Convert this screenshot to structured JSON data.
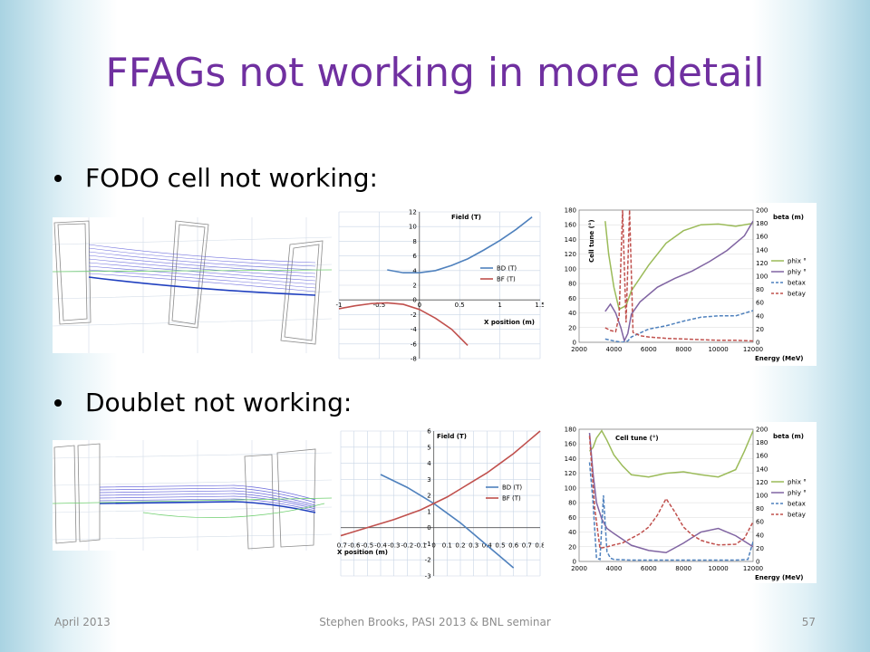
{
  "slide": {
    "title": "FFAGs not working in more detail",
    "bullets": [
      "FODO cell not working:",
      "Doublet not working:"
    ],
    "footer_left": "April 2013",
    "footer_center": "Stephen Brooks, PASI 2013 & BNL seminar",
    "page_number": "57"
  },
  "chart_data": [
    {
      "type": "line",
      "title": "Field (T)",
      "xlabel": "X position (m)",
      "xlim": [
        -1,
        1.5
      ],
      "ylim": [
        -8,
        12
      ],
      "xticks": [
        "-1",
        "-0.5",
        "0",
        "0.5",
        "1",
        "1.5"
      ],
      "yticks": [
        "-8",
        "-6",
        "-4",
        "-2",
        "0",
        "2",
        "4",
        "6",
        "8",
        "10",
        "12"
      ],
      "series": [
        {
          "name": "BD (T)",
          "color": "#4f81bd",
          "x": [
            -0.4,
            -0.2,
            0,
            0.2,
            0.4,
            0.6,
            0.8,
            1.0,
            1.2,
            1.4
          ],
          "y": [
            4.1,
            3.7,
            3.7,
            4.0,
            4.7,
            5.6,
            6.8,
            8.1,
            9.6,
            11.3
          ]
        },
        {
          "name": "BF (T)",
          "color": "#c0504d",
          "x": [
            -1.0,
            -0.8,
            -0.6,
            -0.4,
            -0.2,
            0,
            0.2,
            0.4,
            0.6
          ],
          "y": [
            -1.2,
            -0.8,
            -0.5,
            -0.4,
            -0.6,
            -1.3,
            -2.5,
            -4.0,
            -6.2
          ]
        }
      ]
    },
    {
      "type": "line",
      "title": "Cell tune (°)",
      "xlabel": "Energy (MeV)",
      "ylabel_right": "beta (m)",
      "xlim": [
        2000,
        12000
      ],
      "ylim": [
        0,
        180
      ],
      "ylim_right": [
        0,
        200
      ],
      "xticks": [
        "2000",
        "4000",
        "6000",
        "8000",
        "10000",
        "12000"
      ],
      "yticks": [
        "0",
        "20",
        "40",
        "60",
        "80",
        "100",
        "120",
        "140",
        "160",
        "180"
      ],
      "yticks_right": [
        "0",
        "20",
        "40",
        "60",
        "80",
        "100",
        "120",
        "140",
        "160",
        "180",
        "200"
      ],
      "series": [
        {
          "name": "phix °",
          "color": "#9bbb59",
          "dash": false,
          "axis": "left",
          "x": [
            3500,
            3700,
            4000,
            4300,
            4700,
            5000,
            6000,
            7000,
            8000,
            9000,
            10000,
            11000,
            12000
          ],
          "y": [
            165,
            120,
            75,
            45,
            50,
            70,
            105,
            135,
            152,
            160,
            161,
            158,
            162
          ]
        },
        {
          "name": "phiy °",
          "color": "#8064a2",
          "dash": false,
          "axis": "left",
          "x": [
            3500,
            3800,
            4100,
            4400,
            4600,
            4800,
            5000,
            5500,
            6500,
            7500,
            8500,
            9500,
            10500,
            11500,
            12000
          ],
          "y": [
            42,
            52,
            40,
            20,
            2,
            12,
            38,
            55,
            75,
            87,
            97,
            110,
            125,
            145,
            165
          ]
        },
        {
          "name": "betax",
          "color": "#4f81bd",
          "dash": true,
          "axis": "right",
          "x": [
            3500,
            4000,
            4500,
            4800,
            5000,
            5500,
            6000,
            7000,
            8000,
            9000,
            10000,
            11000,
            12000
          ],
          "y": [
            5,
            2,
            0,
            2,
            8,
            14,
            20,
            25,
            32,
            38,
            40,
            40,
            48
          ]
        },
        {
          "name": "betay",
          "color": "#c0504d",
          "dash": true,
          "axis": "right",
          "x": [
            3500,
            3800,
            4100,
            4300,
            4500,
            4700,
            4900,
            5100,
            5500,
            6000,
            7000,
            8000,
            9000,
            10000,
            11000,
            12000
          ],
          "y": [
            22,
            18,
            16,
            40,
            200,
            30,
            200,
            15,
            10,
            8,
            6,
            5,
            4,
            3,
            3,
            2
          ]
        }
      ]
    },
    {
      "type": "line",
      "title": "Field (T)",
      "xlabel": "X position (m)",
      "xlim": [
        -0.7,
        0.8
      ],
      "ylim": [
        -3,
        6
      ],
      "xticks": [
        "-0.7",
        "-0.6",
        "-0.5",
        "-0.4",
        "-0.3",
        "-0.2",
        "-0.1",
        "0",
        "0.1",
        "0.2",
        "0.3",
        "0.4",
        "0.5",
        "0.6",
        "0.7",
        "0.8"
      ],
      "yticks": [
        "-3",
        "-2",
        "-1",
        "0",
        "1",
        "2",
        "3",
        "4",
        "5",
        "6"
      ],
      "series": [
        {
          "name": "BD (T)",
          "color": "#4f81bd",
          "x": [
            -0.4,
            -0.2,
            -0.1,
            0,
            0.1,
            0.2,
            0.3,
            0.4,
            0.5,
            0.6
          ],
          "y": [
            3.3,
            2.5,
            2.0,
            1.5,
            0.9,
            0.3,
            -0.4,
            -1.1,
            -1.8,
            -2.5
          ]
        },
        {
          "name": "BF (T)",
          "color": "#c0504d",
          "x": [
            -0.7,
            -0.5,
            -0.3,
            -0.1,
            0,
            0.1,
            0.2,
            0.3,
            0.4,
            0.5,
            0.6,
            0.7,
            0.8
          ],
          "y": [
            -0.5,
            0.0,
            0.5,
            1.1,
            1.5,
            1.9,
            2.4,
            2.9,
            3.4,
            4.0,
            4.6,
            5.3,
            6.0
          ]
        }
      ]
    },
    {
      "type": "line",
      "title": "Cell tune (°)",
      "xlabel": "Energy (MeV)",
      "ylabel_right": "beta (m)",
      "xlim": [
        2000,
        12000
      ],
      "ylim": [
        0,
        180
      ],
      "ylim_right": [
        0,
        200
      ],
      "xticks": [
        "2000",
        "4000",
        "6000",
        "8000",
        "10000",
        "12000"
      ],
      "yticks": [
        "0",
        "20",
        "40",
        "60",
        "80",
        "100",
        "120",
        "140",
        "160",
        "180"
      ],
      "yticks_right": [
        "0",
        "20",
        "40",
        "60",
        "80",
        "100",
        "120",
        "140",
        "160",
        "180",
        "200"
      ],
      "series": [
        {
          "name": "phix °",
          "color": "#9bbb59",
          "dash": false,
          "axis": "left",
          "x": [
            2600,
            2800,
            3000,
            3300,
            3600,
            4000,
            4500,
            5000,
            6000,
            7000,
            8000,
            9000,
            10000,
            11000,
            11500,
            12000
          ],
          "y": [
            150,
            155,
            168,
            178,
            165,
            145,
            130,
            118,
            115,
            120,
            122,
            118,
            115,
            125,
            150,
            178
          ]
        },
        {
          "name": "phiy °",
          "color": "#8064a2",
          "dash": false,
          "axis": "left",
          "x": [
            2600,
            2800,
            3000,
            3300,
            3600,
            4000,
            4500,
            5000,
            6000,
            7000,
            8000,
            9000,
            10000,
            11000,
            12000
          ],
          "y": [
            175,
            120,
            80,
            58,
            45,
            38,
            30,
            22,
            15,
            12,
            25,
            40,
            45,
            35,
            20
          ]
        },
        {
          "name": "betax",
          "color": "#4f81bd",
          "dash": true,
          "axis": "right",
          "x": [
            2600,
            2800,
            3000,
            3200,
            3400,
            3600,
            3800,
            4000,
            5000,
            6000,
            8000,
            10000,
            11000,
            11700,
            12000
          ],
          "y": [
            150,
            90,
            5,
            3,
            100,
            15,
            5,
            3,
            2,
            2,
            2,
            2,
            2,
            3,
            30
          ]
        },
        {
          "name": "betay",
          "color": "#c0504d",
          "dash": true,
          "axis": "right",
          "x": [
            2600,
            2900,
            3200,
            3600,
            4000,
            4500,
            5000,
            5500,
            6000,
            6500,
            7000,
            7500,
            8000,
            8500,
            9000,
            9500,
            10000,
            11000,
            11500,
            12000
          ],
          "y": [
            190,
            80,
            20,
            22,
            25,
            28,
            35,
            42,
            52,
            70,
            95,
            75,
            52,
            40,
            32,
            28,
            25,
            26,
            35,
            60
          ]
        }
      ]
    }
  ]
}
